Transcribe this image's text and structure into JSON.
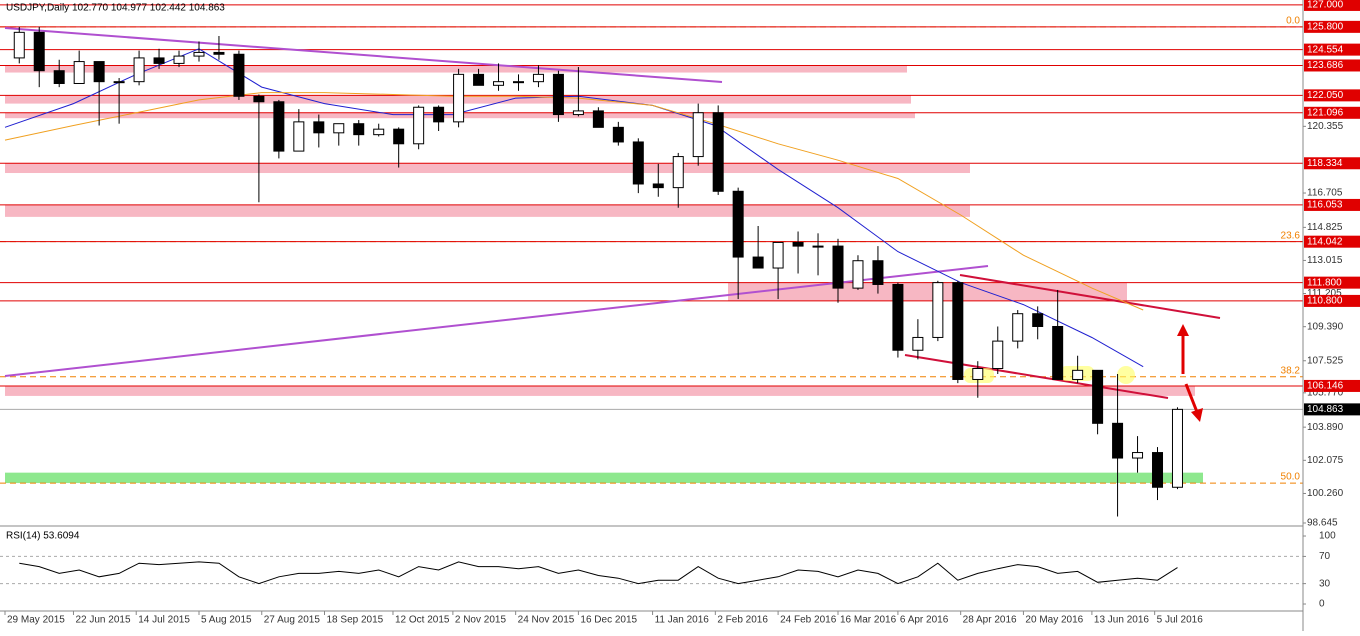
{
  "chart_data": {
    "type": "candlestick",
    "title": "USDJPY,Daily  102.770 104.977 102.442 104.863",
    "x": [
      "1 Jun 2015",
      "8 Jun 2015",
      "15 Jun 2015",
      "22 Jun 2015",
      "29 Jun 2015",
      "6 Jul 2015",
      "13 Jul 2015",
      "20 Jul 2015",
      "27 Jul 2015",
      "3 Aug 2015",
      "10 Aug 2015",
      "17 Aug 2015",
      "24 Aug 2015",
      "31 Aug 2015",
      "7 Sep 2015",
      "14 Sep 2015",
      "21 Sep 2015",
      "28 Sep 2015",
      "5 Oct 2015",
      "12 Oct 2015",
      "19 Oct 2015",
      "26 Oct 2015",
      "2 Nov 2015",
      "9 Nov 2015",
      "16 Nov 2015",
      "23 Nov 2015",
      "30 Nov 2015",
      "7 Dec 2015",
      "14 Dec 2015",
      "21 Dec 2015",
      "28 Dec 2015",
      "4 Jan 2016",
      "11 Jan 2016",
      "18 Jan 2016",
      "25 Jan 2016",
      "1 Feb 2016",
      "8 Feb 2016",
      "15 Feb 2016",
      "22 Feb 2016",
      "29 Feb 2016",
      "7 Mar 2016",
      "14 Mar 2016",
      "21 Mar 2016",
      "28 Mar 2016",
      "4 Apr 2016",
      "11 Apr 2016",
      "18 Apr 2016",
      "25 Apr 2016",
      "2 May 2016",
      "9 May 2016",
      "16 May 2016",
      "23 May 2016",
      "30 May 2016",
      "6 Jun 2016",
      "13 Jun 2016",
      "20 Jun 2016",
      "27 Jun 2016",
      "4 Jul 2016",
      "11 Jul 2016"
    ],
    "open": [
      124.1,
      125.5,
      123.4,
      122.7,
      123.9,
      122.8,
      122.8,
      124.1,
      123.8,
      124.2,
      124.4,
      124.3,
      122.0,
      121.7,
      119.0,
      120.6,
      120.0,
      120.5,
      119.9,
      120.2,
      119.4,
      121.4,
      120.6,
      123.2,
      122.6,
      122.8,
      122.8,
      123.2,
      121.0,
      121.2,
      120.3,
      119.5,
      117.2,
      117.0,
      118.7,
      121.1,
      116.8,
      113.2,
      112.6,
      114.0,
      113.8,
      113.8,
      111.5,
      113.0,
      111.7,
      108.1,
      108.8,
      111.8,
      106.5,
      107.1,
      108.6,
      110.1,
      109.4,
      106.5,
      107.0,
      104.1,
      102.2,
      102.5,
      100.6
    ],
    "high": [
      125.8,
      125.8,
      124.0,
      124.5,
      123.9,
      123.0,
      124.5,
      124.6,
      124.5,
      125.0,
      125.3,
      124.5,
      122.1,
      121.8,
      121.3,
      121.0,
      120.5,
      120.7,
      120.5,
      120.3,
      121.5,
      121.5,
      123.5,
      123.5,
      123.8,
      123.2,
      123.7,
      123.4,
      123.6,
      121.4,
      120.6,
      119.7,
      118.3,
      118.9,
      121.6,
      121.5,
      117.0,
      114.9,
      114.0,
      114.6,
      114.5,
      114.2,
      113.3,
      113.8,
      111.8,
      109.8,
      111.9,
      111.9,
      107.5,
      109.4,
      110.3,
      110.5,
      111.4,
      107.8,
      107.0,
      106.8,
      103.4,
      102.8,
      104.977
    ],
    "low": [
      123.8,
      122.5,
      122.5,
      122.7,
      120.4,
      120.5,
      122.6,
      123.5,
      123.6,
      123.9,
      124.0,
      121.8,
      116.2,
      118.6,
      119.0,
      119.2,
      119.3,
      119.3,
      119.8,
      118.1,
      119.1,
      120.1,
      120.3,
      122.6,
      122.3,
      122.3,
      122.5,
      120.6,
      120.9,
      120.3,
      119.3,
      116.7,
      116.5,
      115.9,
      118.2,
      116.6,
      110.9,
      112.6,
      110.9,
      112.3,
      112.2,
      110.7,
      111.4,
      111.2,
      107.7,
      107.6,
      108.6,
      106.3,
      105.5,
      106.8,
      108.2,
      108.7,
      106.5,
      106.3,
      103.5,
      99.0,
      101.4,
      99.9,
      100.5
    ],
    "close": [
      125.5,
      123.4,
      122.7,
      123.9,
      122.8,
      122.8,
      124.1,
      123.8,
      124.2,
      124.4,
      124.3,
      122.0,
      121.7,
      119.0,
      120.6,
      120.0,
      120.5,
      119.9,
      120.2,
      119.4,
      121.4,
      120.6,
      123.2,
      122.6,
      122.8,
      122.8,
      123.2,
      121.0,
      121.2,
      120.3,
      119.5,
      117.2,
      117.0,
      118.7,
      121.1,
      116.8,
      113.2,
      112.6,
      114.0,
      113.8,
      113.8,
      111.5,
      113.0,
      111.7,
      108.1,
      108.8,
      111.8,
      106.5,
      107.1,
      108.6,
      110.1,
      109.4,
      106.5,
      107.0,
      104.1,
      102.2,
      102.5,
      100.6,
      104.863
    ],
    "ma": [
      {
        "color": "#2020d0",
        "x": [
          "29 May 2015",
          "22 Jun 2015",
          "14 Jul 2015",
          "5 Aug 2015",
          "27 Aug 2015",
          "18 Sep 2015",
          "12 Oct 2015",
          "2 Nov 2015",
          "24 Nov 2015",
          "16 Dec 2015",
          "11 Jan 2016",
          "2 Feb 2016",
          "24 Feb 2016",
          "16 Mar 2016",
          "6 Apr 2016",
          "28 Apr 2016",
          "20 May 2016",
          "13 Jun 2016",
          "1 Jul 2016"
        ],
        "values": [
          120.3,
          121.6,
          123.2,
          124.6,
          122.5,
          121.6,
          121.0,
          121.0,
          121.9,
          122.0,
          121.5,
          120.4,
          118.0,
          115.9,
          113.5,
          111.8,
          110.6,
          108.8,
          107.2
        ]
      },
      {
        "color": "#f0a020",
        "x": [
          "29 May 2015",
          "22 Jun 2015",
          "14 Jul 2015",
          "5 Aug 2015",
          "27 Aug 2015",
          "18 Sep 2015",
          "12 Oct 2015",
          "2 Nov 2015",
          "24 Nov 2015",
          "16 Dec 2015",
          "11 Jan 2016",
          "2 Feb 2016",
          "24 Feb 2016",
          "16 Mar 2016",
          "6 Apr 2016",
          "28 Apr 2016",
          "20 May 2016",
          "13 Jun 2016",
          "1 Jul 2016"
        ],
        "values": [
          119.6,
          120.4,
          121.1,
          121.8,
          122.2,
          122.2,
          122.1,
          122.0,
          122.0,
          121.9,
          121.5,
          120.5,
          119.4,
          118.5,
          117.5,
          115.5,
          113.3,
          111.5,
          110.3
        ]
      }
    ],
    "levels": [
      {
        "value": 127.0,
        "label": "127.000"
      },
      {
        "value": 125.8,
        "label": "125.800"
      },
      124.554,
      123.686,
      {
        "value": 122.05,
        "label": "122.050"
      },
      121.096,
      118.334,
      116.053,
      114.042,
      {
        "value": 111.8,
        "label": "111.800"
      },
      {
        "value": 110.8,
        "label": "110.800"
      },
      106.146
    ],
    "level_color": "#e00000",
    "fib": [
      {
        "label": "0.0",
        "price": 125.8
      },
      {
        "label": "23.6",
        "price": 114.042
      },
      {
        "label": "38.2",
        "price": 106.65
      },
      {
        "label": "50.0",
        "price": 100.83
      }
    ],
    "fib_color": "#f08000",
    "zones": [
      {
        "low": 123.3,
        "high": 123.686,
        "color": "#f7b7c3"
      },
      {
        "low": 121.6,
        "high": 122.05,
        "color": "#f7b7c3"
      },
      {
        "low": 120.8,
        "high": 121.096,
        "color": "#f7b7c3"
      },
      {
        "low": 117.8,
        "high": 118.334,
        "color": "#f7b7c3"
      },
      {
        "low": 115.4,
        "high": 116.053,
        "color": "#f7b7c3"
      },
      {
        "low": 110.8,
        "high": 111.8,
        "color": "#f7b7c3"
      },
      {
        "low": 105.6,
        "high": 106.146,
        "color": "#f7b7c3"
      },
      {
        "low": 100.83,
        "high": 101.4,
        "color": "#8ee88e"
      }
    ],
    "last": {
      "value": 104.863,
      "label": "104.863"
    },
    "ylim": [
      98.48,
      127.27
    ],
    "yticks": [
      120.355,
      116.705,
      114.825,
      113.015,
      111.205,
      {
        "value": 109.39,
        "label": "109.390"
      },
      107.525,
      {
        "value": 105.77,
        "label": "105.770"
      },
      {
        "value": 103.89,
        "label": "103.890"
      },
      102.075,
      {
        "value": 100.26,
        "label": "100.260"
      },
      98.645
    ],
    "xlim": [
      "29 May 2015",
      "26 Aug 2016"
    ],
    "xticks": [
      "29 May 2015",
      "22 Jun 2015",
      "14 Jul 2015",
      "5 Aug 2015",
      "27 Aug 2015",
      "18 Sep 2015",
      "12 Oct 2015",
      "2 Nov 2015",
      "24 Nov 2015",
      "16 Dec 2015",
      "11 Jan 2016",
      "2 Feb 2016",
      "24 Feb 2016",
      "16 Mar 2016",
      "6 Apr 2016",
      "28 Apr 2016",
      "20 May 2016",
      "13 Jun 2016",
      "5 Jul 2016"
    ],
    "rsi": {
      "title": "RSI(14) 53.6094",
      "values": [
        60,
        55,
        45,
        50,
        40,
        45,
        60,
        58,
        60,
        62,
        60,
        40,
        30,
        40,
        45,
        45,
        48,
        45,
        50,
        40,
        55,
        50,
        62,
        55,
        55,
        52,
        55,
        45,
        50,
        42,
        38,
        30,
        35,
        35,
        55,
        38,
        30,
        35,
        40,
        50,
        48,
        40,
        50,
        45,
        30,
        40,
        60,
        35,
        45,
        52,
        58,
        55,
        45,
        48,
        32,
        35,
        38,
        35,
        53.6094
      ],
      "ylim": [
        -8.8,
        111.8
      ],
      "yticks": [
        100,
        70,
        30,
        0
      ],
      "dashed": [
        70,
        30
      ]
    }
  }
}
